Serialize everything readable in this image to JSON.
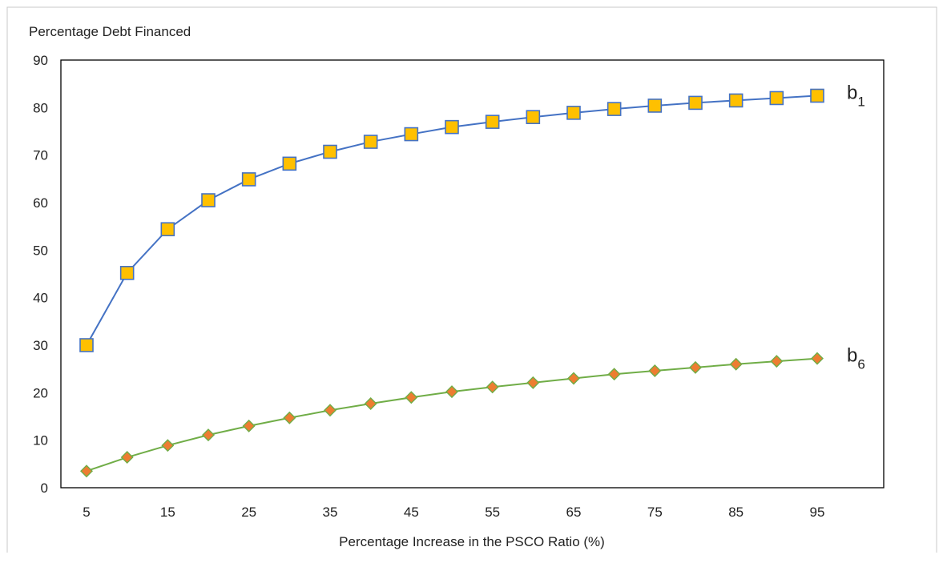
{
  "chart_data": {
    "type": "line",
    "title": "",
    "ylabel": "Percentage Debt Financed",
    "xlabel": "Percentage Increase in the PSCO Ratio (%)",
    "ylim": [
      0,
      90
    ],
    "yticks": [
      0,
      10,
      20,
      30,
      40,
      50,
      60,
      70,
      80,
      90
    ],
    "x": [
      5,
      10,
      15,
      20,
      25,
      30,
      35,
      40,
      45,
      50,
      55,
      60,
      65,
      70,
      75,
      80,
      85,
      90,
      95
    ],
    "xtick_labels": [
      "5",
      "15",
      "25",
      "35",
      "45",
      "55",
      "65",
      "75",
      "85",
      "95"
    ],
    "grid": false,
    "legend": "none",
    "series": [
      {
        "name": "b1",
        "label_main": "b",
        "label_sub": "1",
        "line_color": "#4472C4",
        "marker": "square",
        "marker_fill": "#FFC000",
        "marker_edge": "#4472C4",
        "values": [
          30.0,
          45.2,
          54.4,
          60.5,
          64.9,
          68.2,
          70.7,
          72.8,
          74.4,
          75.9,
          77.0,
          78.0,
          78.9,
          79.7,
          80.4,
          81.0,
          81.5,
          82.0,
          82.5
        ]
      },
      {
        "name": "b6",
        "label_main": "b",
        "label_sub": "6",
        "line_color": "#70AD47",
        "marker": "diamond",
        "marker_fill": "#ED7D31",
        "marker_edge": "#70AD47",
        "values": [
          3.5,
          6.4,
          8.9,
          11.1,
          13.0,
          14.7,
          16.3,
          17.7,
          19.0,
          20.2,
          21.2,
          22.1,
          23.0,
          23.9,
          24.6,
          25.3,
          26.0,
          26.6,
          27.2
        ]
      }
    ]
  }
}
